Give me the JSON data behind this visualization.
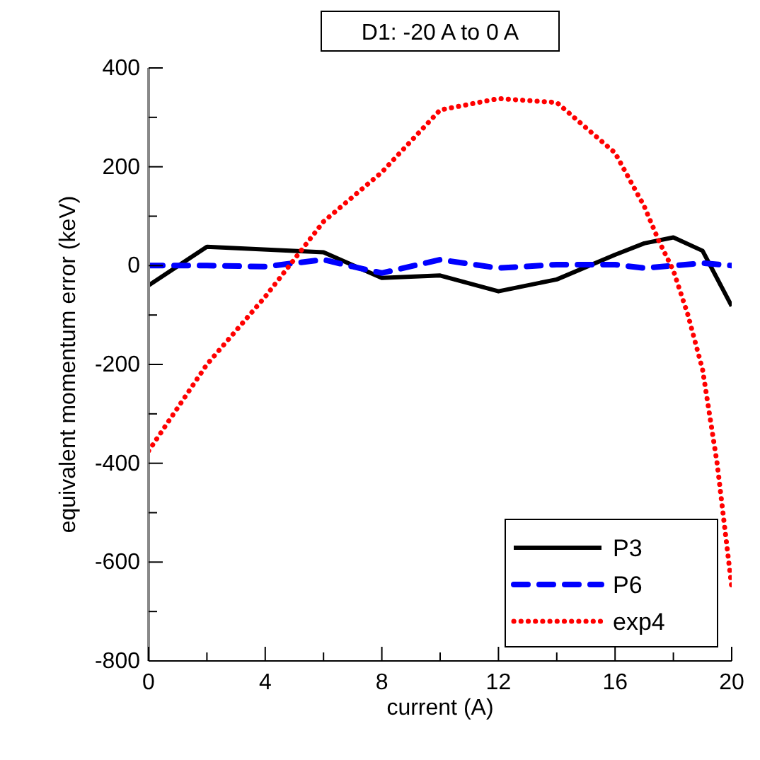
{
  "chart_data": {
    "type": "line",
    "title": "D1: -20 A to 0 A",
    "xlabel": "current (A)",
    "ylabel": "equivalent momentum error (keV)",
    "xlim": [
      0,
      20
    ],
    "ylim": [
      -800,
      400
    ],
    "xticks": [
      0,
      {
        "value": 2,
        "label": null
      },
      4,
      {
        "value": 6,
        "label": null
      },
      8,
      {
        "value": 10,
        "label": null
      },
      12,
      {
        "value": 14,
        "label": null
      },
      16,
      {
        "value": 18,
        "label": null
      },
      20
    ],
    "yticks": [
      -800,
      {
        "value": -700,
        "label": null
      },
      -600,
      {
        "value": -500,
        "label": null
      },
      -400,
      {
        "value": -300,
        "label": null
      },
      -200,
      {
        "value": -100,
        "label": null
      },
      0,
      {
        "value": 100,
        "label": null
      },
      200,
      {
        "value": 300,
        "label": null
      },
      400
    ],
    "grid": false,
    "legend": "bottom right",
    "series": [
      {
        "name": "P3",
        "color": "#000000",
        "line_style": "solid",
        "x": [
          0,
          2,
          6,
          8,
          10,
          12,
          14,
          16,
          17,
          18,
          19,
          20
        ],
        "values": [
          -40,
          38,
          27,
          -25,
          -20,
          -52,
          -28,
          22,
          45,
          57,
          30,
          -82
        ]
      },
      {
        "name": "P6",
        "color": "#0000ff",
        "line_style": "dashed",
        "x": [
          0,
          2,
          4,
          6,
          7,
          8,
          10,
          12,
          14,
          16,
          17,
          18,
          19,
          20
        ],
        "values": [
          0,
          0,
          -2,
          12,
          -2,
          -15,
          12,
          -5,
          2,
          2,
          -5,
          0,
          5,
          0
        ]
      },
      {
        "name": "exp4",
        "color": "#ff0000",
        "line_style": "dotted",
        "x": [
          0,
          2,
          4,
          5,
          6,
          8,
          10,
          12,
          14,
          16,
          17,
          17.5,
          18,
          18.5,
          19,
          19.5,
          20
        ],
        "values": [
          -375,
          -200,
          -63,
          13,
          89,
          189,
          315,
          338,
          330,
          228,
          120,
          50,
          -10,
          -100,
          -210,
          -400,
          -650
        ]
      }
    ]
  }
}
